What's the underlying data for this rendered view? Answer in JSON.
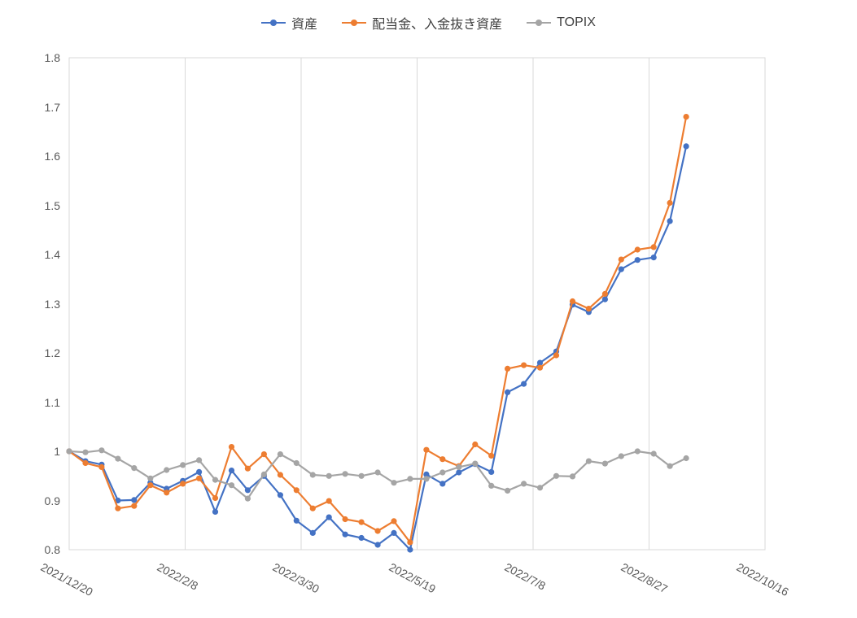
{
  "colors": {
    "background": "#FFFFFF",
    "gridline": "#D9D9D9",
    "axis_text": "#595959",
    "legend_text": "#404040",
    "series_blue": "#4472C4",
    "series_orange": "#ED7D31",
    "series_gray": "#A5A5A5"
  },
  "chart_data": {
    "type": "line",
    "title": "",
    "xlabel": "",
    "ylabel": "",
    "grid": "vertical-only",
    "legend_position": "top",
    "y_axis": {
      "min": 0.8,
      "max": 1.8,
      "tick_labels": [
        "0.8",
        "0.9",
        "1",
        "1.1",
        "1.2",
        "1.3",
        "1.4",
        "1.5",
        "1.6",
        "1.7",
        "1.8"
      ]
    },
    "x_axis": {
      "max_day": 300,
      "tick_days": [
        0,
        50,
        100,
        150,
        200,
        250,
        300
      ],
      "tick_labels": [
        "2021/12/20",
        "2022/2/8",
        "2022/3/30",
        "2022/5/19",
        "2022/7/8",
        "2022/8/27",
        "2022/10/16"
      ]
    },
    "x_dates": [
      "2021/12/20",
      "2021/12/27",
      "2022/1/3",
      "2022/1/10",
      "2022/1/17",
      "2022/1/24",
      "2022/1/31",
      "2022/2/7",
      "2022/2/14",
      "2022/2/21",
      "2022/2/28",
      "2022/3/7",
      "2022/3/14",
      "2022/3/21",
      "2022/3/28",
      "2022/4/4",
      "2022/4/11",
      "2022/4/18",
      "2022/4/25",
      "2022/5/2",
      "2022/5/9",
      "2022/5/16",
      "2022/5/23",
      "2022/5/30",
      "2022/6/6",
      "2022/6/13",
      "2022/6/20",
      "2022/6/27",
      "2022/7/4",
      "2022/7/11",
      "2022/7/18",
      "2022/7/25",
      "2022/8/1",
      "2022/8/8",
      "2022/8/15",
      "2022/8/22",
      "2022/8/29",
      "2022/9/5",
      "2022/9/12"
    ],
    "x_days": [
      0,
      7,
      14,
      21,
      28,
      35,
      42,
      49,
      56,
      63,
      70,
      77,
      84,
      91,
      98,
      105,
      112,
      119,
      126,
      133,
      140,
      147,
      154,
      161,
      168,
      175,
      182,
      189,
      196,
      203,
      210,
      217,
      224,
      231,
      238,
      245,
      252,
      259,
      266
    ],
    "series": [
      {
        "name": "資産",
        "color": "#4472C4",
        "values": [
          1.0,
          0.98,
          0.973,
          0.9,
          0.901,
          0.936,
          0.924,
          0.94,
          0.958,
          0.877,
          0.961,
          0.921,
          0.95,
          0.911,
          0.859,
          0.834,
          0.866,
          0.831,
          0.824,
          0.81,
          0.834,
          0.8,
          0.953,
          0.934,
          0.957,
          0.974,
          0.958,
          1.12,
          1.137,
          1.18,
          1.203,
          1.298,
          1.283,
          1.309,
          1.37,
          1.389,
          1.394,
          1.468,
          1.62
        ]
      },
      {
        "name": "配当金、入金抜き資産",
        "color": "#ED7D31",
        "values": [
          1.0,
          0.976,
          0.968,
          0.884,
          0.889,
          0.931,
          0.916,
          0.934,
          0.945,
          0.905,
          1.009,
          0.965,
          0.994,
          0.952,
          0.921,
          0.884,
          0.899,
          0.862,
          0.856,
          0.838,
          0.858,
          0.815,
          1.003,
          0.984,
          0.97,
          1.014,
          0.991,
          1.168,
          1.175,
          1.17,
          1.195,
          1.305,
          1.29,
          1.32,
          1.39,
          1.41,
          1.415,
          1.505,
          1.68
        ]
      },
      {
        "name": "TOPIX",
        "color": "#A5A5A5",
        "values": [
          1.0,
          0.998,
          1.002,
          0.985,
          0.966,
          0.945,
          0.962,
          0.972,
          0.982,
          0.942,
          0.931,
          0.904,
          0.953,
          0.994,
          0.976,
          0.952,
          0.95,
          0.954,
          0.95,
          0.957,
          0.936,
          0.944,
          0.944,
          0.957,
          0.968,
          0.975,
          0.93,
          0.92,
          0.934,
          0.926,
          0.95,
          0.949,
          0.98,
          0.975,
          0.99,
          1.0,
          0.995,
          0.97,
          0.986
        ]
      }
    ]
  }
}
